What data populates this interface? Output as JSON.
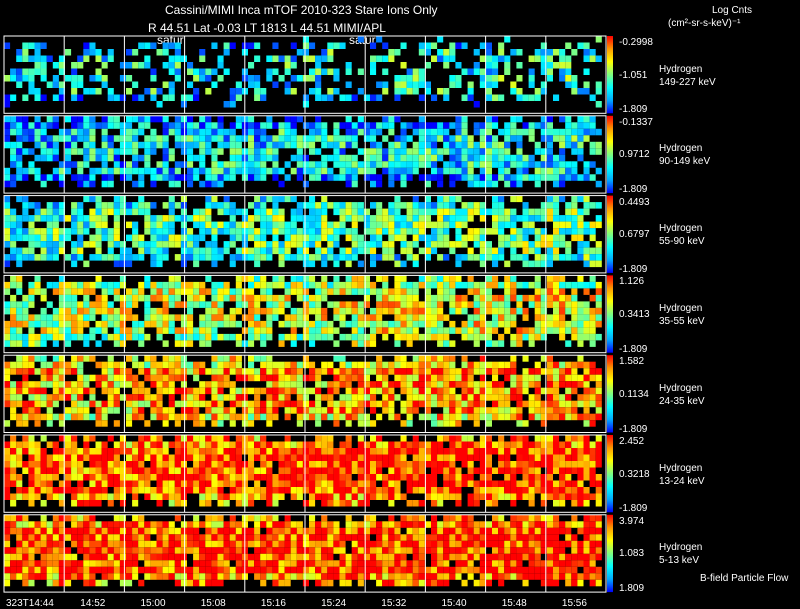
{
  "header": {
    "title": "Cassini/MIMI Inca mTOF  2010-323    Stare    Ions Only",
    "position_line": "R         44.51  Lat  -0.03  LT  1813  L        44.51   MIMI/APL",
    "satur_left": "satur",
    "satur_right": "satur"
  },
  "legend": {
    "title": "Log Cnts",
    "units": "(cm²-sr-s-keV)⁻¹"
  },
  "footer": {
    "bfield_label": "B-field Particle Flow"
  },
  "colors": {
    "background": "#000000",
    "grid": "#ffffff",
    "colorbar_scale": [
      "#0000ff",
      "#00aaff",
      "#00ffff",
      "#80ff80",
      "#ffff00",
      "#ff9900",
      "#ff0000"
    ]
  },
  "chart_data": {
    "type": "heatmap",
    "title": "Cassini/MIMI Inca mTOF 2010-323 Stare Ions Only",
    "x_tick_labels": [
      "323T14:44",
      "14:52",
      "15:00",
      "15:08",
      "15:16",
      "15:24",
      "15:32",
      "15:40",
      "15:48",
      "15:56"
    ],
    "panels": [
      {
        "species": "Hydrogen",
        "energy": "149-227 keV",
        "scale_max": "-0.2998",
        "scale_mid": "-1.051",
        "scale_min": "-1.809",
        "mean_level": 0.25,
        "density": 0.45
      },
      {
        "species": "Hydrogen",
        "energy": "90-149 keV",
        "scale_max": "-0.1337",
        "scale_mid": "0.9712",
        "scale_min": "-1.809",
        "mean_level": 0.2,
        "density": 0.8
      },
      {
        "species": "Hydrogen",
        "energy": "55-90 keV",
        "scale_max": "0.4493",
        "scale_mid": "0.6797",
        "scale_min": "-1.809",
        "mean_level": 0.35,
        "density": 0.8
      },
      {
        "species": "Hydrogen",
        "energy": "35-55 keV",
        "scale_max": "1.126",
        "scale_mid": "0.3413",
        "scale_min": "-1.809",
        "mean_level": 0.55,
        "density": 0.8
      },
      {
        "species": "Hydrogen",
        "energy": "24-35 keV",
        "scale_max": "1.582",
        "scale_mid": "0.1134",
        "scale_min": "-1.809",
        "mean_level": 0.7,
        "density": 0.85
      },
      {
        "species": "Hydrogen",
        "energy": "13-24 keV",
        "scale_max": "2.452",
        "scale_mid": "0.3218",
        "scale_min": "-1.809",
        "mean_level": 0.84,
        "density": 0.92
      },
      {
        "species": "Hydrogen",
        "energy": "5-13 keV",
        "scale_max": "3.974",
        "scale_mid": "1.083",
        "scale_min": "1.809",
        "mean_level": 0.86,
        "density": 0.95
      }
    ]
  }
}
